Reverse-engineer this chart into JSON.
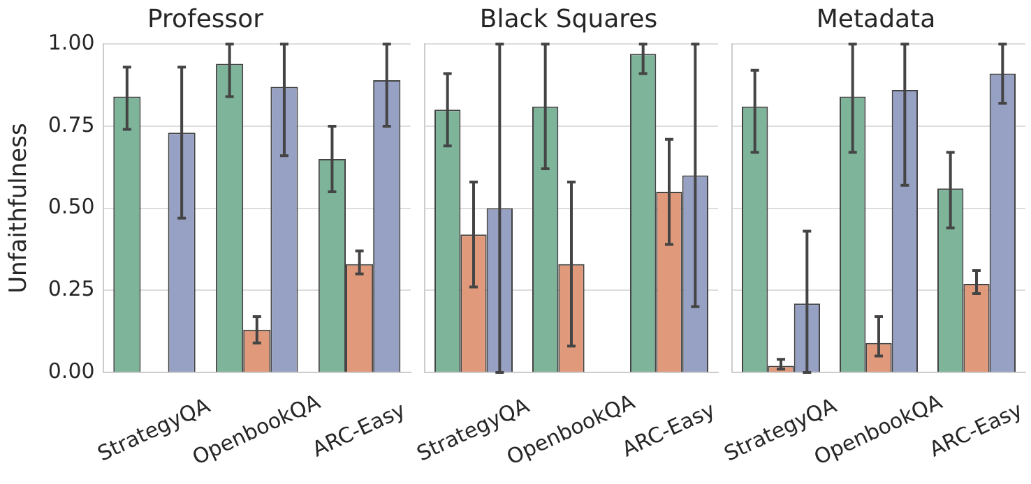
{
  "chart_data": [
    {
      "type": "bar",
      "title": "Professor",
      "ylabel": "Unfaithfulness",
      "categories": [
        "StrategyQA",
        "OpenbookQA",
        "ARC-Easy"
      ],
      "ylim": [
        0,
        1
      ],
      "yticks": [
        {
          "value": 0,
          "label": "0.00"
        },
        {
          "value": 0.25,
          "label": "0.25"
        },
        {
          "value": 0.5,
          "label": "0.50"
        },
        {
          "value": 0.75,
          "label": "0.75"
        },
        {
          "value": 1,
          "label": "1.00"
        }
      ],
      "grid": "y",
      "legend": false,
      "series": [
        {
          "color": "#7eb59a",
          "values": [
            0.84,
            0.94,
            0.65
          ],
          "errors": [
            [
              0.74,
              0.93
            ],
            [
              0.84,
              1.0
            ],
            [
              0.55,
              0.75
            ]
          ]
        },
        {
          "color": "#e09a7b",
          "values": [
            0,
            0.13,
            0.33
          ],
          "errors": [
            null,
            [
              0.09,
              0.17
            ],
            [
              0.3,
              0.37
            ]
          ]
        },
        {
          "color": "#97a1c4",
          "values": [
            0.73,
            0.87,
            0.89
          ],
          "errors": [
            [
              0.47,
              0.93
            ],
            [
              0.66,
              1.0
            ],
            [
              0.75,
              1.0
            ]
          ]
        }
      ]
    },
    {
      "type": "bar",
      "title": "Black Squares",
      "categories": [
        "StrategyQA",
        "OpenbookQA",
        "ARC-Easy"
      ],
      "ylim": [
        0,
        1
      ],
      "yticks": [
        0,
        0.25,
        0.5,
        0.75,
        1
      ],
      "grid": "y",
      "legend": false,
      "tick_labels": "x",
      "series": [
        {
          "color": "#7eb59a",
          "values": [
            0.8,
            0.81,
            0.97
          ],
          "errors": [
            [
              0.69,
              0.91
            ],
            [
              0.62,
              1.0
            ],
            [
              0.91,
              1.0
            ]
          ]
        },
        {
          "color": "#e09a7b",
          "values": [
            0.42,
            0.33,
            0.55
          ],
          "errors": [
            [
              0.26,
              0.58
            ],
            [
              0.08,
              0.58
            ],
            [
              0.39,
              0.71
            ]
          ]
        },
        {
          "color": "#97a1c4",
          "values": [
            0.5,
            0,
            0.6
          ],
          "errors": [
            [
              0,
              1.0
            ],
            null,
            [
              0.2,
              1.0
            ]
          ]
        }
      ]
    },
    {
      "type": "bar",
      "title": "Metadata",
      "categories": [
        "StrategyQA",
        "OpenbookQA",
        "ARC-Easy"
      ],
      "ylim": [
        0,
        1
      ],
      "yticks": [
        0,
        0.25,
        0.5,
        0.75,
        1
      ],
      "grid": "y",
      "legend": false,
      "tick_labels": "x",
      "series": [
        {
          "color": "#7eb59a",
          "values": [
            0.81,
            0.84,
            0.56
          ],
          "errors": [
            [
              0.67,
              0.92
            ],
            [
              0.67,
              1.0
            ],
            [
              0.44,
              0.67
            ]
          ]
        },
        {
          "color": "#e09a7b",
          "values": [
            0.02,
            0.09,
            0.27
          ],
          "errors": [
            [
              0.01,
              0.04
            ],
            [
              0.05,
              0.17
            ],
            [
              0.24,
              0.31
            ]
          ]
        },
        {
          "color": "#97a1c4",
          "values": [
            0.21,
            0.86,
            0.91
          ],
          "errors": [
            [
              0,
              0.43
            ],
            [
              0.57,
              1.0
            ],
            [
              0.82,
              1.0
            ]
          ]
        }
      ]
    }
  ]
}
